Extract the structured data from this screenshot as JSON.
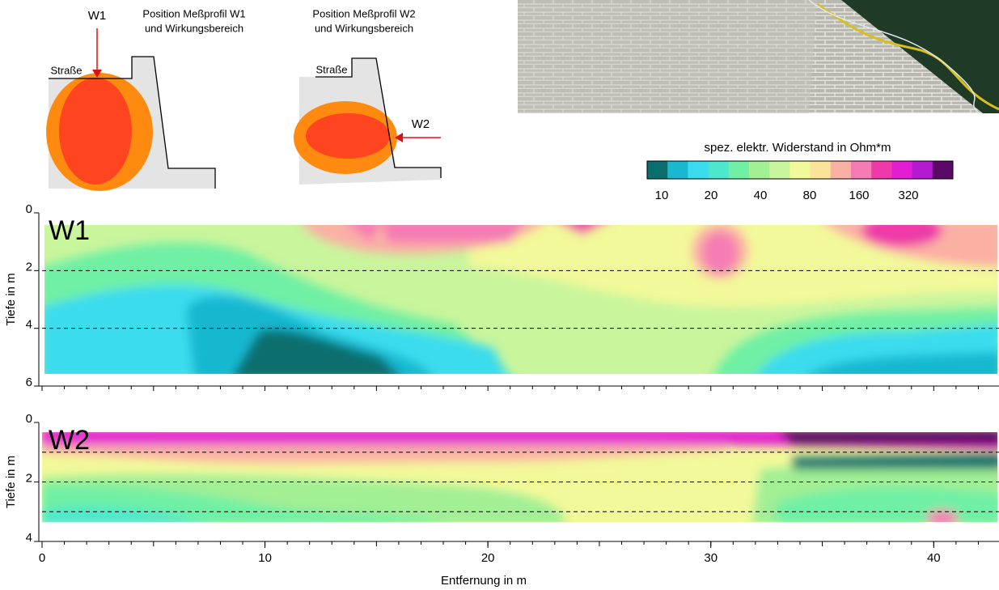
{
  "sketch1": {
    "marker": "W1",
    "road": "Straße",
    "caption": [
      "Position Meßprofil W1",
      "und Wirkungsbereich"
    ]
  },
  "sketch2": {
    "marker": "W2",
    "road": "Straße",
    "caption": [
      "Position Meßprofil W2",
      "und Wirkungsbereich"
    ]
  },
  "colorbar": {
    "title": "spez. elektr. Widerstand in Ohm*m",
    "colors": [
      "#0b6e6e",
      "#19b8d0",
      "#3adcee",
      "#4de8cc",
      "#6ff0a4",
      "#a2ef94",
      "#c9f59c",
      "#f2f99a",
      "#fbe39a",
      "#fbb0a4",
      "#f57bb4",
      "#ee3aa8",
      "#e21ed2",
      "#b41ad0",
      "#5a0a66"
    ],
    "ticks": [
      10,
      20,
      40,
      80,
      160,
      320
    ]
  },
  "chart_data": [
    {
      "type": "contour",
      "label": "W1",
      "ylabel": "Tiefe  in m",
      "ylim": [
        0,
        6
      ],
      "yticks": [
        0,
        2,
        4,
        6
      ],
      "gridlines": [
        2,
        4
      ],
      "xlim": [
        0,
        43
      ]
    },
    {
      "type": "contour",
      "label": "W2",
      "ylabel": "Tiefe  in m",
      "ylim": [
        0,
        4
      ],
      "yticks": [
        0,
        2,
        4
      ],
      "gridlines": [
        1,
        2,
        3
      ],
      "xlim": [
        0,
        43
      ],
      "xticks": [
        0,
        10,
        20,
        30,
        40
      ],
      "xlabel": "Entfernung in m"
    }
  ]
}
